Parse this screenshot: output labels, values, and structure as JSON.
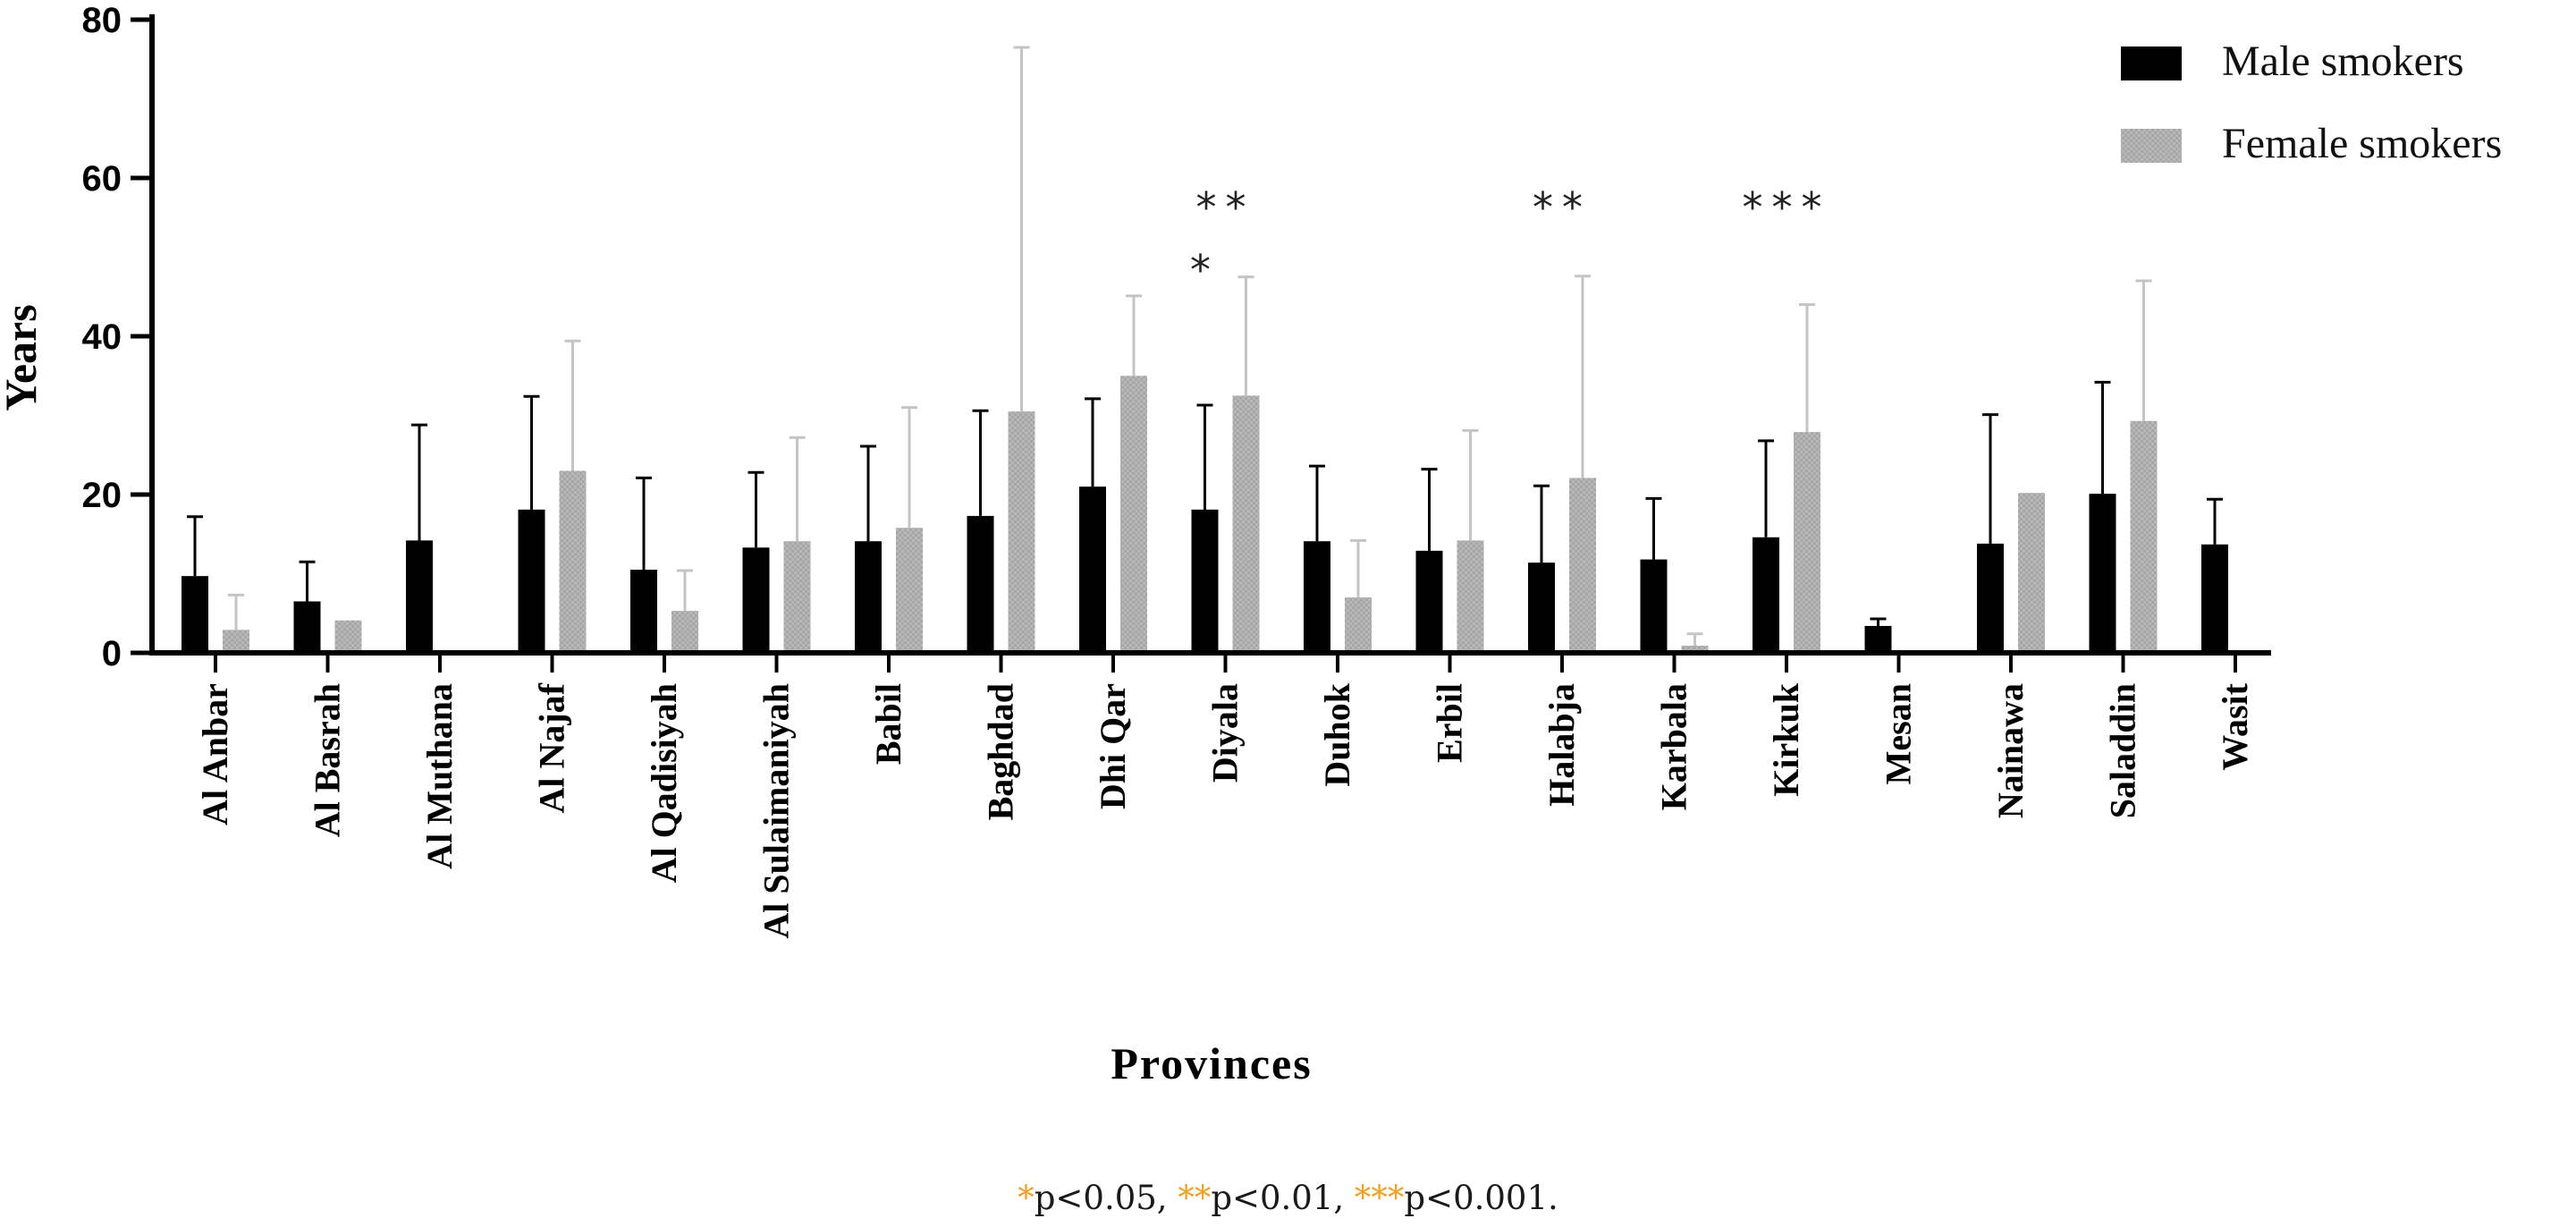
{
  "chart_data": {
    "type": "bar",
    "ylabel": "Years",
    "xlabel": "Provinces",
    "ylim": [
      0,
      80
    ],
    "yticks": [
      0,
      20,
      40,
      60,
      80
    ],
    "grid": false,
    "legend_position": "top-right",
    "categories": [
      "Al Anbar",
      "Al Basrah",
      "Al Muthana",
      "Al Najaf",
      "Al Qadisiyah",
      "Al Sulaimaniyah",
      "Babil",
      "Baghdad",
      "Dhi Qar",
      "Diyala",
      "Duhok",
      "Erbil",
      "Halabja",
      "Karbala",
      "Kirkuk",
      "Mesan",
      "Nainawa",
      "Saladdin",
      "Wasit"
    ],
    "series": [
      {
        "name": "Male smokers",
        "color": "#000000",
        "values": [
          9.7,
          6.5,
          14.2,
          18.1,
          10.5,
          13.3,
          14.1,
          17.3,
          21.0,
          18.1,
          14.1,
          12.9,
          11.4,
          11.8,
          14.6,
          3.4,
          13.8,
          20.1,
          13.7
        ],
        "error_upper": [
          17.2,
          11.5,
          28.8,
          32.4,
          22.1,
          22.8,
          26.1,
          30.6,
          32.1,
          31.3,
          23.6,
          23.2,
          21.1,
          19.5,
          26.8,
          4.3,
          30.1,
          34.2,
          19.4
        ]
      },
      {
        "name": "Female smokers",
        "color": "#b3b3b3",
        "values": [
          2.9,
          4.1,
          null,
          23.0,
          5.3,
          14.1,
          15.8,
          30.5,
          35.0,
          32.5,
          7.0,
          14.2,
          22.1,
          0.9,
          27.9,
          null,
          20.2,
          29.3,
          null
        ],
        "error_upper": [
          7.3,
          null,
          null,
          39.4,
          10.4,
          27.2,
          31.0,
          76.5,
          45.1,
          47.5,
          14.2,
          28.1,
          47.6,
          2.4,
          44.0,
          null,
          null,
          47.0,
          null
        ]
      }
    ],
    "significance": [
      {
        "category": "Diyala",
        "lines": [
          "**",
          "*"
        ]
      },
      {
        "category": "Halabja",
        "lines": [
          "**"
        ]
      },
      {
        "category": "Kirkuk",
        "lines": [
          "***"
        ]
      }
    ]
  },
  "footnote": {
    "s1": "*",
    "t1": "p<0.05, ",
    "s2": "**",
    "t2": "p<0.01, ",
    "s3": "***",
    "t3": "p<0.001."
  }
}
